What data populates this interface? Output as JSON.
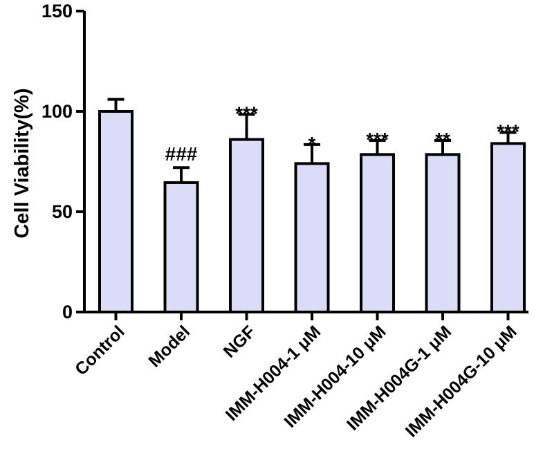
{
  "chart_data": {
    "type": "bar",
    "title": "",
    "xlabel": "",
    "ylabel": "Cell Viability(%)",
    "ylim": [
      0,
      150
    ],
    "yticks": [
      0,
      50,
      100,
      150
    ],
    "grid": false,
    "categories": [
      "Control",
      "Model",
      "NGF",
      "IMM-H004-1 μM",
      "IMM-H004-10 μM",
      "IMM-H004G-1 μM",
      "IMM-H004G-10 μM"
    ],
    "values": [
      100,
      64.5,
      86,
      74,
      78.5,
      78.5,
      84
    ],
    "error": [
      6,
      7.5,
      12.5,
      9.5,
      7,
      7,
      5.5
    ],
    "annotations": [
      "",
      "###",
      "***",
      "*",
      "***",
      "**",
      "***"
    ],
    "colors": {
      "bar_fill": "#dcdcf7",
      "bar_stroke": "#000000",
      "axis": "#000000"
    }
  }
}
